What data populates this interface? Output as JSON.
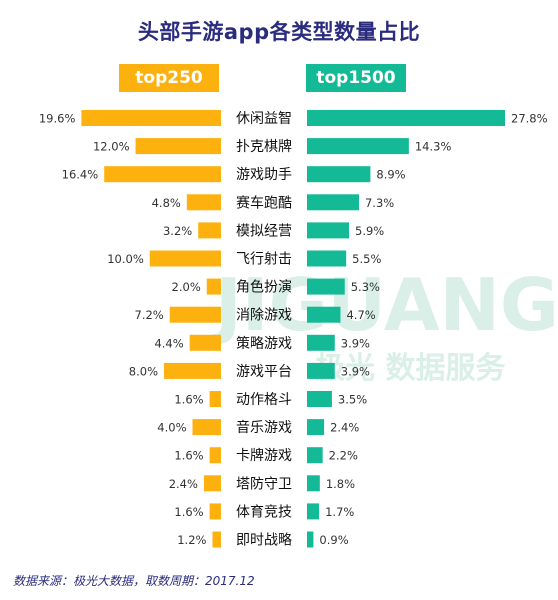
{
  "colors": {
    "left": "#fdb10f",
    "right": "#14b995",
    "title": "#2b2c7e",
    "watermark": "#d9efe7"
  },
  "watermark": {
    "brand": "JIGUANG",
    "tagline": "极光 数据服务"
  },
  "footer": {
    "source": "数据来源：极光大数据，取数周期：2017.12"
  },
  "chart_data": {
    "type": "bar",
    "orientation": "horizontal-butterfly",
    "title": "头部手游app各类型数量占比",
    "categories": [
      "休闲益智",
      "扑克棋牌",
      "游戏助手",
      "赛车跑酷",
      "模拟经营",
      "飞行射击",
      "角色扮演",
      "消除游戏",
      "策略游戏",
      "游戏平台",
      "动作格斗",
      "音乐游戏",
      "卡牌游戏",
      "塔防守卫",
      "体育竞技",
      "即时战略"
    ],
    "series": [
      {
        "name": "top250",
        "side": "left",
        "color": "#fdb10f",
        "values": [
          19.6,
          12.0,
          16.4,
          4.8,
          3.2,
          10.0,
          2.0,
          7.2,
          4.4,
          8.0,
          1.6,
          4.0,
          1.6,
          2.4,
          1.6,
          1.2
        ],
        "labels": [
          "19.6%",
          "12.0%",
          "16.4%",
          "4.8%",
          "3.2%",
          "10.0%",
          "2.0%",
          "7.2%",
          "4.4%",
          "8.0%",
          "1.6%",
          "4.0%",
          "1.6%",
          "2.4%",
          "1.6%",
          "1.2%"
        ]
      },
      {
        "name": "top1500",
        "side": "right",
        "color": "#14b995",
        "values": [
          27.8,
          14.3,
          8.9,
          7.3,
          5.9,
          5.5,
          5.3,
          4.7,
          3.9,
          3.9,
          3.5,
          2.4,
          2.2,
          1.8,
          1.7,
          0.9
        ],
        "labels": [
          "27.8%",
          "14.3%",
          "8.9%",
          "7.3%",
          "5.9%",
          "5.5%",
          "5.3%",
          "4.7%",
          "3.9%",
          "3.9%",
          "3.5%",
          "2.4%",
          "2.2%",
          "1.8%",
          "1.7%",
          "0.9%"
        ]
      }
    ],
    "unit": "%"
  }
}
